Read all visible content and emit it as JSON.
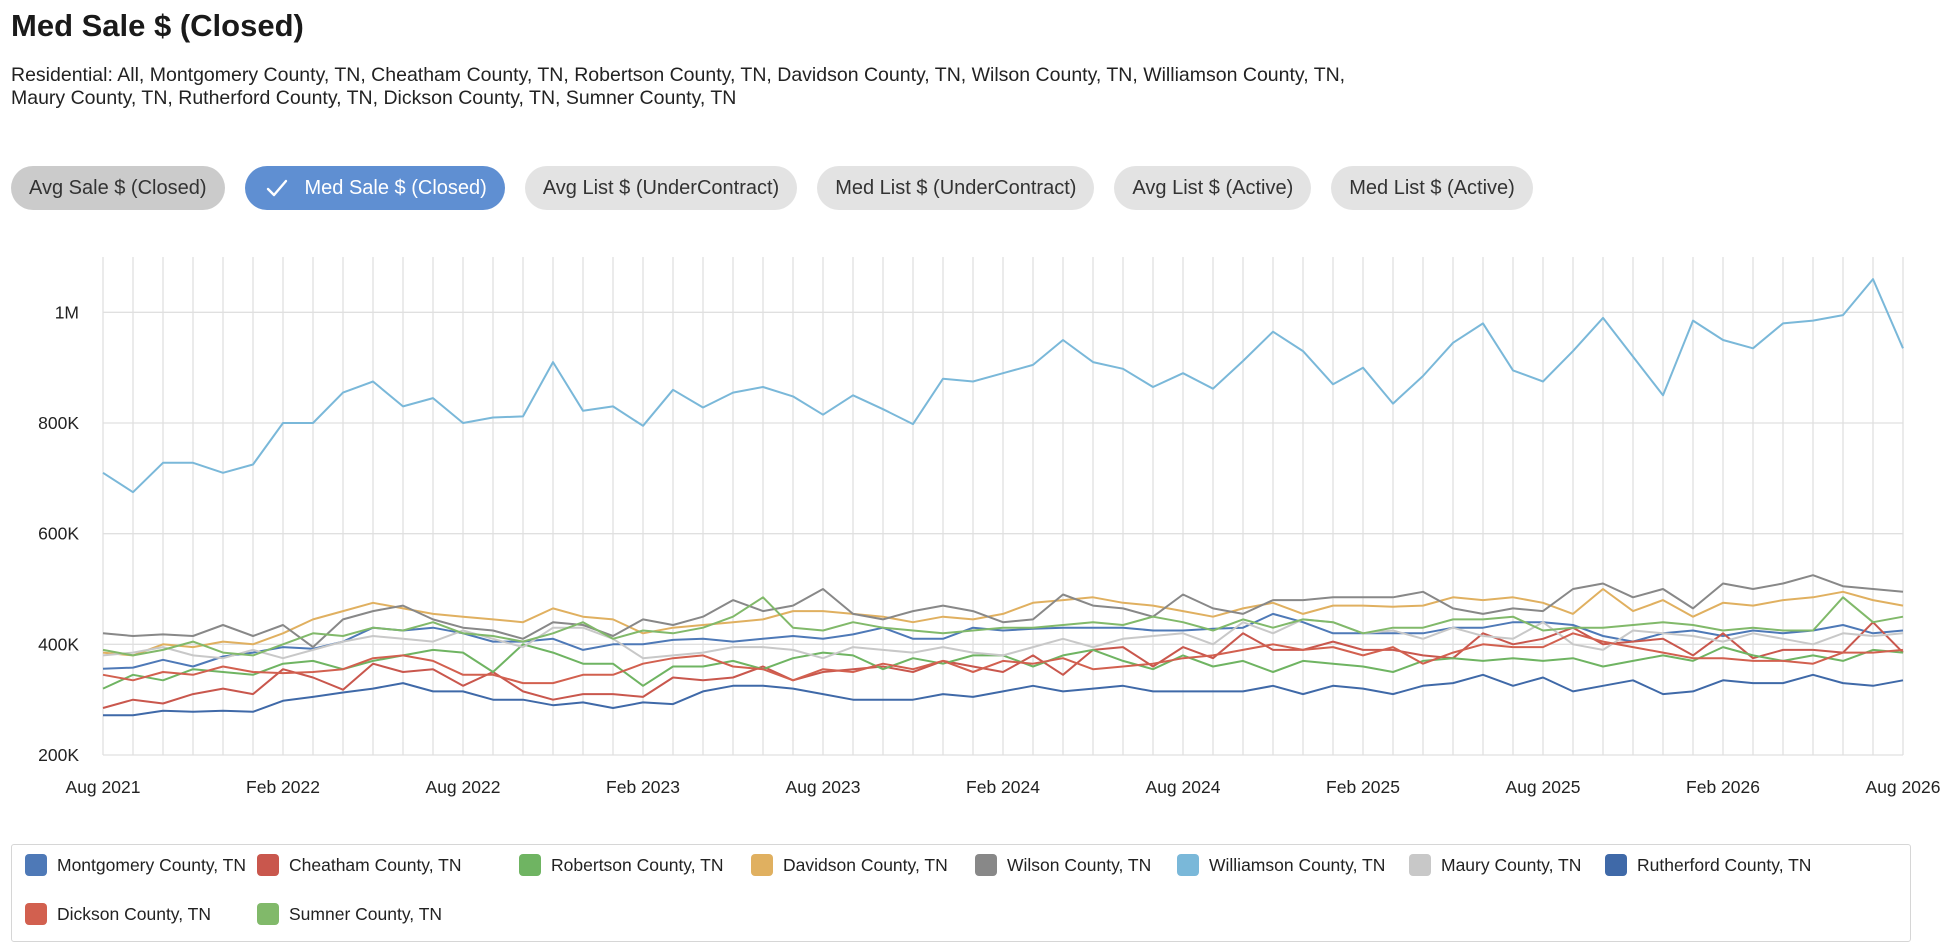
{
  "header": {
    "title": "Med Sale $ (Closed)",
    "subtitle": "Residential: All, Montgomery County, TN, Cheatham County, TN, Robertson County, TN, Davidson County, TN, Wilson County, TN, Williamson County, TN, Maury County, TN, Rutherford County, TN, Dickson County, TN, Sumner County, TN"
  },
  "tabs": [
    {
      "label": "Avg Sale $ (Closed)",
      "state": "hover"
    },
    {
      "label": "Med Sale $ (Closed)",
      "state": "selected"
    },
    {
      "label": "Avg List $ (UnderContract)",
      "state": "normal"
    },
    {
      "label": "Med List $ (UnderContract)",
      "state": "normal"
    },
    {
      "label": "Avg List $ (Active)",
      "state": "normal"
    },
    {
      "label": "Med List $ (Active)",
      "state": "normal"
    }
  ],
  "icons": {
    "selected_tab": "check-icon"
  },
  "chart_data": {
    "type": "line",
    "x_start": "2021-08",
    "x_end": "2026-08",
    "x_ticks": [
      "Aug 2021",
      "Feb 2022",
      "Aug 2022",
      "Feb 2023",
      "Aug 2023",
      "Feb 2024",
      "Aug 2024",
      "Feb 2025",
      "Aug 2025",
      "Feb 2026",
      "Aug 2026"
    ],
    "y_ticks": [
      "200K",
      "400K",
      "600K",
      "800K",
      "1M"
    ],
    "ylim": [
      200000,
      1100000
    ],
    "grid": true,
    "legend_position": "bottom",
    "series": [
      {
        "name": "Montgomery County, TN",
        "color": "#4e79b7",
        "values": [
          356,
          358,
          372,
          360,
          378,
          385,
          395,
          392,
          405,
          430,
          425,
          430,
          420,
          405,
          405,
          410,
          390,
          400,
          400,
          408,
          410,
          405,
          410,
          415,
          410,
          418,
          430,
          410,
          410,
          430,
          425,
          428,
          430,
          430,
          430,
          425,
          425,
          428,
          430,
          455,
          440,
          420,
          420,
          420,
          420,
          430,
          430,
          440,
          440,
          435,
          415,
          405,
          420,
          425,
          415,
          425,
          420,
          425,
          435,
          420,
          425
        ]
      },
      {
        "name": "Cheatham County, TN",
        "color": "#c9574d",
        "values": [
          285,
          300,
          293,
          310,
          320,
          310,
          355,
          340,
          318,
          365,
          350,
          355,
          325,
          350,
          315,
          300,
          310,
          310,
          305,
          340,
          335,
          340,
          360,
          335,
          350,
          355,
          360,
          350,
          370,
          360,
          350,
          380,
          345,
          390,
          395,
          360,
          395,
          375,
          420,
          390,
          390,
          405,
          390,
          390,
          380,
          375,
          420,
          400,
          410,
          430,
          400,
          405,
          410,
          380,
          420,
          375,
          390,
          390,
          385,
          440,
          385
        ]
      },
      {
        "name": "Robertson County, TN",
        "color": "#6fb462",
        "values": [
          320,
          345,
          335,
          355,
          350,
          345,
          365,
          370,
          355,
          370,
          380,
          390,
          385,
          350,
          400,
          385,
          365,
          365,
          325,
          360,
          360,
          370,
          355,
          375,
          385,
          380,
          355,
          375,
          365,
          380,
          380,
          360,
          380,
          390,
          370,
          355,
          380,
          360,
          370,
          350,
          370,
          365,
          360,
          350,
          370,
          375,
          370,
          375,
          370,
          375,
          360,
          370,
          380,
          370,
          395,
          380,
          370,
          380,
          370,
          390,
          385
        ]
      },
      {
        "name": "Davidson County, TN",
        "color": "#e0b060",
        "values": [
          385,
          380,
          400,
          395,
          405,
          400,
          420,
          445,
          460,
          475,
          465,
          455,
          450,
          445,
          440,
          465,
          450,
          445,
          420,
          430,
          435,
          440,
          445,
          460,
          460,
          455,
          450,
          440,
          450,
          445,
          455,
          475,
          480,
          485,
          475,
          470,
          460,
          450,
          465,
          475,
          455,
          470,
          470,
          468,
          470,
          485,
          480,
          485,
          475,
          455,
          500,
          460,
          480,
          450,
          475,
          470,
          480,
          485,
          495,
          480,
          470
        ]
      },
      {
        "name": "Wilson County, TN",
        "color": "#888888",
        "values": [
          420,
          415,
          418,
          415,
          435,
          415,
          435,
          395,
          445,
          460,
          470,
          445,
          430,
          425,
          410,
          440,
          435,
          415,
          445,
          435,
          450,
          480,
          460,
          470,
          500,
          455,
          445,
          460,
          470,
          460,
          440,
          445,
          490,
          470,
          465,
          450,
          490,
          465,
          455,
          480,
          480,
          485,
          485,
          485,
          495,
          465,
          455,
          465,
          460,
          500,
          510,
          485,
          500,
          465,
          510,
          500,
          510,
          525,
          505,
          500,
          495
        ]
      },
      {
        "name": "Williamson County, TN",
        "color": "#7ab8d9",
        "values": [
          710,
          675,
          728,
          728,
          710,
          725,
          800,
          800,
          855,
          875,
          830,
          845,
          800,
          810,
          812,
          910,
          822,
          830,
          795,
          860,
          828,
          855,
          865,
          848,
          815,
          850,
          825,
          798,
          880,
          875,
          890,
          905,
          950,
          910,
          898,
          865,
          890,
          862,
          912,
          965,
          930,
          870,
          900,
          835,
          885,
          945,
          980,
          895,
          875,
          930,
          990,
          920,
          850,
          985,
          950,
          935,
          980,
          985,
          995,
          1060,
          935
        ]
      },
      {
        "name": "Maury County, TN",
        "color": "#c8c8c8",
        "values": [
          380,
          385,
          395,
          380,
          375,
          390,
          375,
          390,
          405,
          415,
          410,
          405,
          425,
          410,
          395,
          430,
          430,
          410,
          375,
          380,
          385,
          395,
          395,
          390,
          375,
          395,
          390,
          385,
          395,
          385,
          380,
          395,
          410,
          395,
          410,
          415,
          420,
          400,
          440,
          420,
          445,
          440,
          420,
          425,
          410,
          430,
          415,
          410,
          440,
          400,
          390,
          425,
          420,
          415,
          405,
          420,
          410,
          400,
          420,
          415,
          420
        ]
      },
      {
        "name": "Rutherford County, TN",
        "color": "#3f69a8",
        "values": [
          272,
          272,
          280,
          278,
          280,
          278,
          298,
          305,
          313,
          320,
          330,
          315,
          315,
          300,
          300,
          290,
          295,
          285,
          295,
          292,
          315,
          325,
          325,
          320,
          310,
          300,
          300,
          300,
          310,
          305,
          315,
          325,
          315,
          320,
          325,
          315,
          315,
          315,
          315,
          325,
          310,
          325,
          320,
          310,
          325,
          330,
          345,
          325,
          340,
          315,
          325,
          335,
          310,
          315,
          335,
          330,
          330,
          345,
          330,
          325,
          335
        ]
      },
      {
        "name": "Dickson County, TN",
        "color": "#d2604f",
        "values": [
          345,
          335,
          350,
          345,
          360,
          350,
          348,
          350,
          355,
          375,
          380,
          370,
          345,
          345,
          330,
          330,
          345,
          345,
          365,
          375,
          380,
          360,
          355,
          335,
          355,
          350,
          365,
          355,
          370,
          350,
          370,
          365,
          375,
          355,
          360,
          365,
          375,
          380,
          390,
          400,
          390,
          395,
          380,
          395,
          365,
          385,
          400,
          395,
          395,
          420,
          405,
          395,
          385,
          375,
          375,
          370,
          370,
          365,
          385,
          385,
          390
        ]
      },
      {
        "name": "Sumner County, TN",
        "color": "#81b96a",
        "values": [
          390,
          380,
          390,
          405,
          385,
          380,
          400,
          420,
          415,
          430,
          425,
          440,
          420,
          415,
          405,
          420,
          440,
          410,
          425,
          420,
          430,
          450,
          485,
          430,
          425,
          440,
          430,
          425,
          420,
          425,
          430,
          430,
          435,
          440,
          435,
          450,
          440,
          425,
          445,
          430,
          445,
          440,
          420,
          430,
          430,
          445,
          445,
          450,
          425,
          430,
          430,
          435,
          440,
          435,
          425,
          430,
          425,
          425,
          485,
          440,
          450
        ]
      }
    ]
  },
  "legend": {
    "items": [
      {
        "label": "Montgomery County, TN",
        "color": "#4e79b7"
      },
      {
        "label": "Cheatham County, TN",
        "color": "#c9574d"
      },
      {
        "label": "Robertson County, TN",
        "color": "#6fb462"
      },
      {
        "label": "Davidson County, TN",
        "color": "#e0b060"
      },
      {
        "label": "Wilson County, TN",
        "color": "#888888"
      },
      {
        "label": "Williamson County, TN",
        "color": "#7ab8d9"
      },
      {
        "label": "Maury County, TN",
        "color": "#c8c8c8"
      },
      {
        "label": "Rutherford County, TN",
        "color": "#3f69a8"
      },
      {
        "label": "Dickson County, TN",
        "color": "#d2604f"
      },
      {
        "label": "Sumner County, TN",
        "color": "#81b96a"
      }
    ]
  }
}
